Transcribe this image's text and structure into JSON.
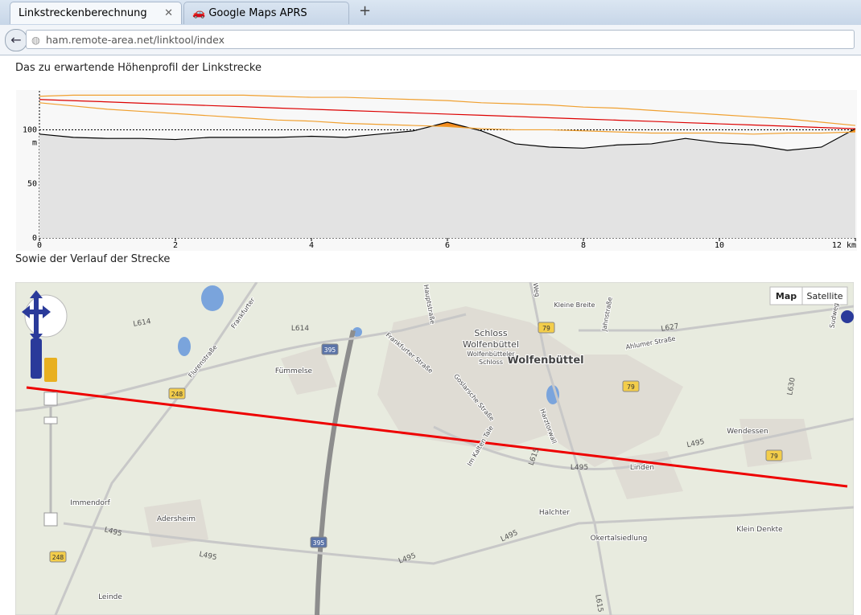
{
  "browser": {
    "tabs": [
      "Linkstreckenberechnung",
      "Google Maps APRS"
    ],
    "new_tab": "+",
    "url": "ham.remote-area.net/linktool/index"
  },
  "headings": [
    "Das zu erwartende Höhenprofil der Linkstrecke",
    "Sowie der Verlauf der Strecke"
  ],
  "chart_data": {
    "type": "area",
    "x": [
      0,
      0.5,
      1,
      1.5,
      2,
      2.5,
      3,
      3.5,
      4,
      4.5,
      5,
      5.5,
      6,
      6.5,
      7,
      7.5,
      8,
      8.5,
      9,
      9.5,
      10,
      10.5,
      11,
      11.5,
      12
    ],
    "series": [
      {
        "color": "#000000",
        "fill": "#e3e3e3",
        "values": [
          96,
          93,
          92,
          92,
          91,
          93,
          93,
          93,
          94,
          93,
          96,
          99,
          107,
          99,
          87,
          84,
          83,
          86,
          87,
          92,
          88,
          86,
          81,
          84,
          101
        ]
      },
      {
        "color": "#dd0000",
        "values": [
          128,
          126.9,
          125.8,
          124.6,
          123.5,
          122.4,
          121.3,
          120.1,
          119,
          117.9,
          116.8,
          115.6,
          114.5,
          113.4,
          112.3,
          111.1,
          110,
          108.9,
          107.8,
          106.6,
          105.5,
          104.4,
          103.3,
          102.1,
          101
        ]
      },
      {
        "color": "#f0a030",
        "values": [
          131,
          132,
          132,
          132,
          132,
          132,
          132,
          131,
          130,
          130,
          129,
          128,
          127,
          125,
          124,
          123,
          121,
          120,
          118,
          116,
          114,
          112,
          110,
          107,
          104
        ]
      },
      {
        "color": "#f0a030",
        "values": [
          125,
          122,
          119,
          117,
          115,
          113,
          111,
          109,
          108,
          106,
          105,
          104,
          103,
          101,
          100,
          100,
          99,
          98,
          97,
          97,
          97,
          96,
          97,
          97,
          98
        ]
      }
    ],
    "obstruction_color": "#f28a1e",
    "y_label": "m",
    "xlim": [
      0,
      12
    ],
    "xticks": [
      0,
      2,
      4,
      6,
      8,
      10,
      {
        "value": 12,
        "label": "12 km"
      }
    ],
    "ylim": [
      0,
      136
    ],
    "yticks": [
      0,
      50,
      100
    ],
    "grid": true
  },
  "map": {
    "buttons": [
      "Map",
      "Satellite"
    ],
    "labels": [
      "Wolfenbüttel",
      "Schloss",
      "Wolfenbüttel",
      "Wolfenbütteler",
      "Schloss",
      "Fümmelse",
      "Linden",
      "Halchter",
      "Okertalsiedlung",
      "Adersheim",
      "Immendorf",
      "Leinde",
      "Wendessen",
      "Klein Denkte",
      "Frankfurter Straße",
      "Goslarsche Straße",
      "Im Kalten Tale",
      "Harztorwall",
      "Ahlumer Straße",
      "Kleine Breite",
      "Jahnstraße",
      "Hauptstraße",
      "Frankfurter",
      "Flurenstraße",
      "Sudweg",
      "Weg"
    ],
    "shields": [
      "395",
      "395",
      "248",
      "248",
      "79",
      "79",
      "79"
    ],
    "roads": [
      "L614",
      "L614",
      "L495",
      "L495",
      "L495",
      "L495",
      "L495",
      "L495",
      "L627",
      "L630",
      "L615",
      "L615"
    ]
  }
}
